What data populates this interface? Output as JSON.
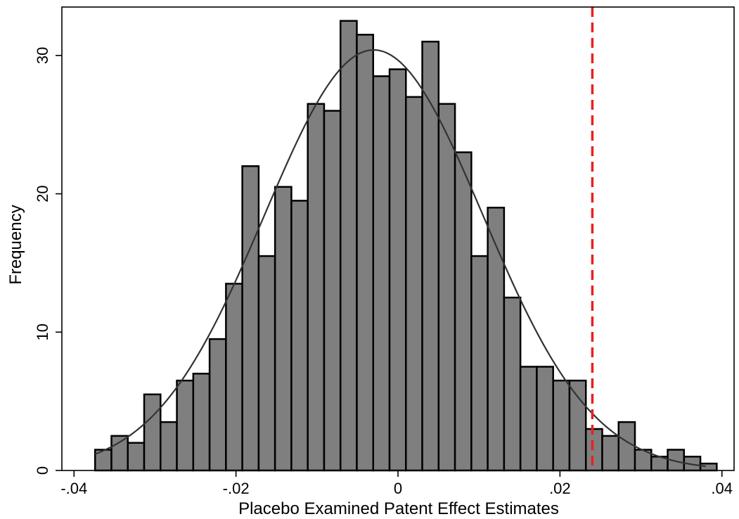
{
  "chart_data": {
    "type": "bar",
    "subtype": "histogram",
    "xlabel": "Placebo Examined Patent Effect Estimates",
    "ylabel": "Frequency",
    "xlim": [
      -0.0415,
      0.0415
    ],
    "ylim": [
      0,
      33.5
    ],
    "x_ticks": [
      -0.04,
      -0.02,
      0,
      0.02,
      0.04
    ],
    "x_tick_labels": [
      "-.04",
      "-.02",
      "0",
      ".02",
      ".04"
    ],
    "y_ticks": [
      0,
      10,
      20,
      30
    ],
    "y_tick_labels": [
      "0",
      "10",
      "20",
      "30"
    ],
    "bin_start": -0.0374,
    "bin_width": 0.00202,
    "frequencies": [
      1.5,
      2.5,
      2,
      5.5,
      3.5,
      6.5,
      7,
      9.5,
      13.5,
      22,
      15.5,
      20.5,
      19.5,
      26.5,
      26,
      32.5,
      31.5,
      28.5,
      29,
      27,
      31,
      26.5,
      23,
      15.5,
      19,
      12.5,
      7.5,
      7.5,
      6.5,
      6.5,
      3,
      2.5,
      3.5,
      1.5,
      1,
      1.5,
      1,
      0.5
    ],
    "normal_curve": {
      "mean": -0.003,
      "sd": 0.0135,
      "peak": 30.4,
      "x_range": [
        -0.0374,
        0.038
      ]
    },
    "reference_line": {
      "x": 0.024,
      "style": "dashed",
      "color": "#e8211f"
    },
    "colors": {
      "bar_fill": "#7f7f7f",
      "bar_edge": "#000000",
      "curve": "#333333"
    },
    "grid": false
  }
}
